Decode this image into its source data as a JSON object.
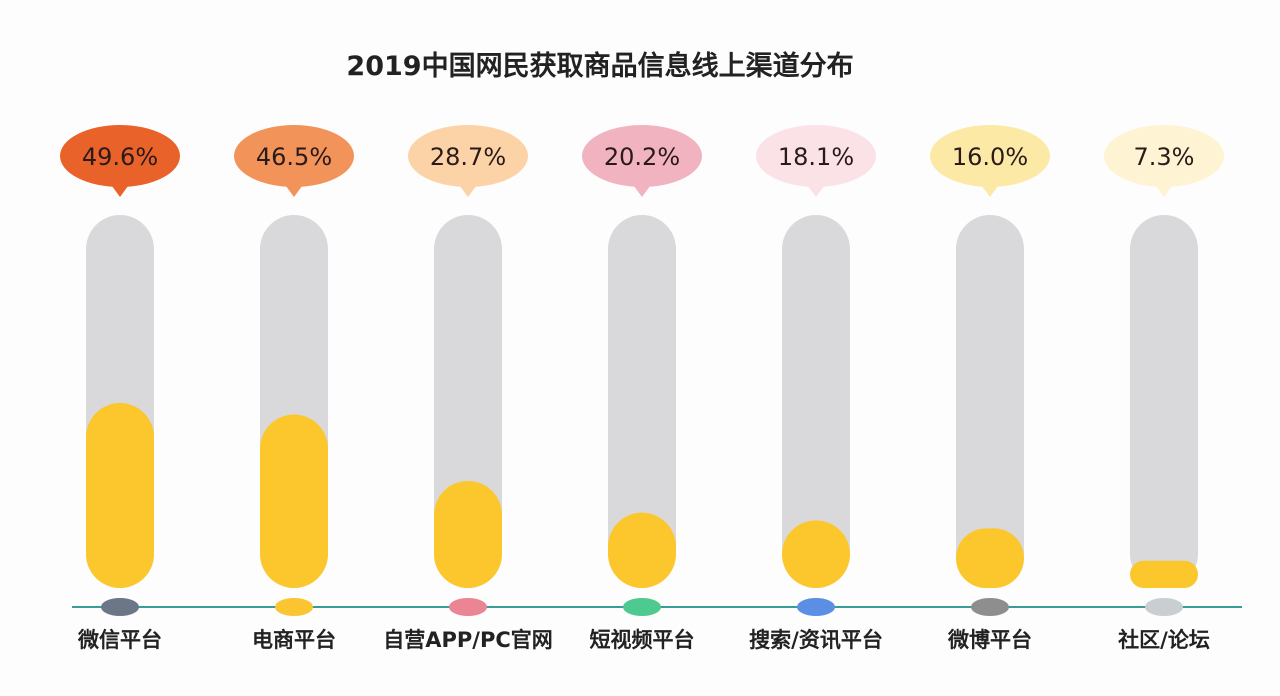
{
  "chart_data": {
    "type": "bar",
    "title": "2019中国网民获取商品信息线上渠道分布",
    "categories": [
      "微信平台",
      "电商平台",
      "自营APP/PC官网",
      "短视频平台",
      "搜索/资讯平台",
      "微博平台",
      "社区/论坛"
    ],
    "values": [
      49.6,
      46.5,
      28.7,
      20.2,
      18.1,
      16.0,
      7.3
    ],
    "labels": [
      "49.6%",
      "46.5%",
      "28.7%",
      "20.2%",
      "18.1%",
      "16.0%",
      "7.3%"
    ],
    "ylim": [
      0,
      100
    ],
    "xlabel": "",
    "ylabel": "",
    "grid": false,
    "bubble_colors": [
      "#e9622a",
      "#f2935a",
      "#fbd3a6",
      "#f2b3c0",
      "#fbe2e6",
      "#fde9a6",
      "#fef3d3"
    ],
    "dot_colors": [
      "#6b7786",
      "#fbc531",
      "#ec8593",
      "#4ec98f",
      "#5b8fe3",
      "#8e8e8e",
      "#c9ced3"
    ],
    "fill_color": "#fcc72c",
    "track_color": "#d9d9db",
    "axis_color": "#3a9c96"
  }
}
